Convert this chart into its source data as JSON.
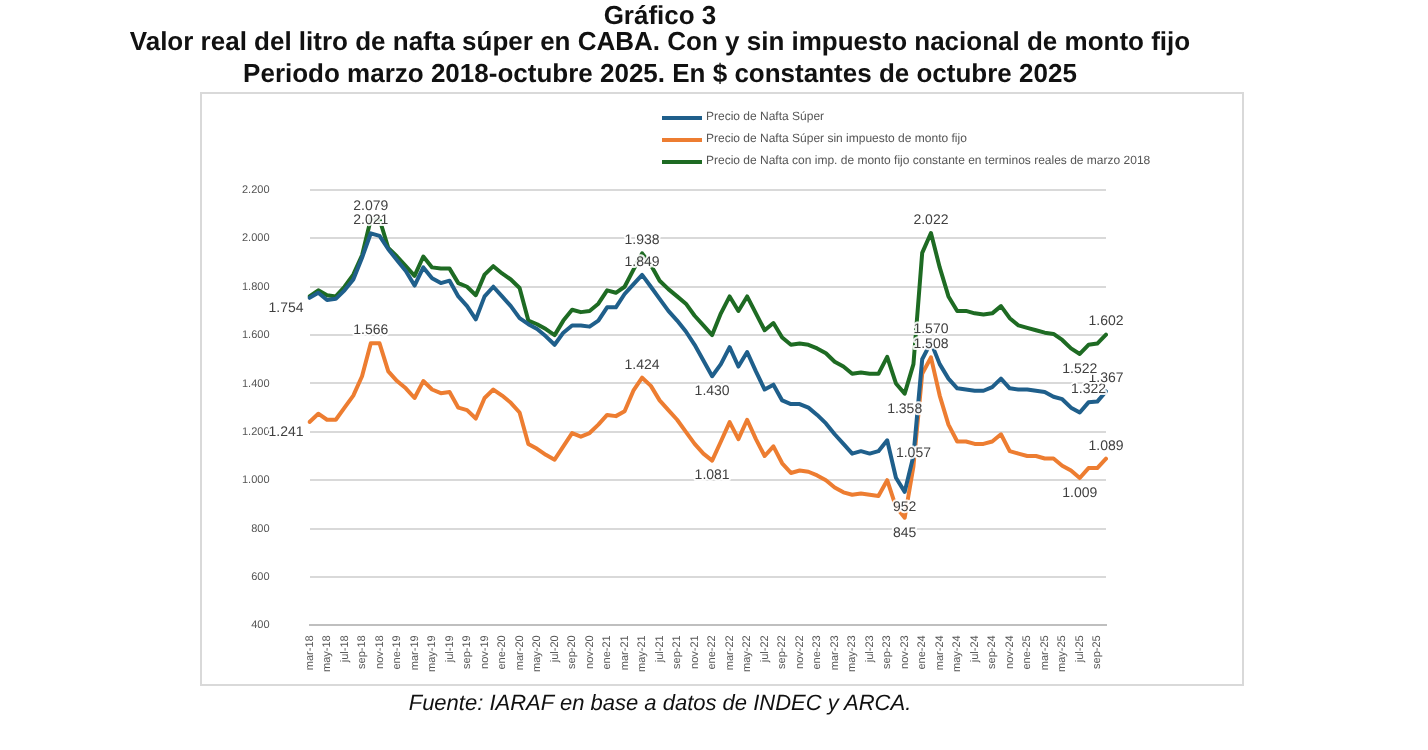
{
  "chart_data": {
    "type": "line",
    "title": "Valor real del litro de nafta súper en CABA. Con y sin impuesto nacional de monto fijo",
    "subtitle": "Periodo marzo 2018-octubre 2025.  En $ constantes de octubre 2025",
    "annotations": [
      "Gráfico 3",
      "Fuente:  IARAF en base a datos de INDEC  y ARCA."
    ],
    "categories": [
      "mar-18",
      null,
      "may-18",
      null,
      "jul-18",
      null,
      "sep-18",
      null,
      "nov-18",
      null,
      "ene-19",
      null,
      "mar-19",
      null,
      "may-19",
      null,
      "jul-19",
      null,
      "sep-19",
      null,
      "nov-19",
      null,
      "ene-20",
      null,
      "mar-20",
      null,
      "may-20",
      null,
      "jul-20",
      null,
      "sep-20",
      null,
      "nov-20",
      null,
      "ene-21",
      null,
      "mar-21",
      null,
      "may-21",
      null,
      "jul-21",
      null,
      "sep-21",
      null,
      "nov-21",
      null,
      "ene-22",
      null,
      "mar-22",
      null,
      "may-22",
      null,
      "jul-22",
      null,
      "sep-22",
      null,
      "nov-22",
      null,
      "ene-23",
      null,
      "mar-23",
      null,
      "may-23",
      null,
      "jul-23",
      null,
      "sep-23",
      null,
      "nov-23",
      null,
      "ene-24",
      null,
      "mar-24",
      null,
      "may-24",
      null,
      "jul-24",
      null,
      "sep-24",
      null,
      "nov-24",
      null,
      "ene-25",
      null,
      "mar-25",
      null,
      "may-25",
      null,
      "jul-25",
      null,
      "sep-25",
      null
    ],
    "series": [
      {
        "name": "Precio de Nafta Súper",
        "color": "#1f5f8b",
        "values": [
          1754,
          1775,
          1745,
          1750,
          1785,
          1830,
          1920,
          2021,
          2010,
          1955,
          1910,
          1865,
          1805,
          1880,
          1835,
          1815,
          1825,
          1760,
          1720,
          1665,
          1760,
          1800,
          1760,
          1720,
          1670,
          1645,
          1625,
          1595,
          1560,
          1610,
          1640,
          1640,
          1635,
          1660,
          1715,
          1715,
          1770,
          1810,
          1849,
          1800,
          1750,
          1700,
          1660,
          1615,
          1560,
          1495,
          1430,
          1480,
          1550,
          1470,
          1530,
          1450,
          1375,
          1395,
          1330,
          1315,
          1315,
          1300,
          1270,
          1235,
          1190,
          1150,
          1110,
          1120,
          1110,
          1120,
          1165,
          1010,
          952,
          1100,
          1500,
          1570,
          1480,
          1420,
          1380,
          1375,
          1370,
          1370,
          1385,
          1420,
          1380,
          1375,
          1375,
          1370,
          1365,
          1345,
          1335,
          1300,
          1280,
          1322,
          1325,
          1367
        ],
        "value_labels": [
          "1.754",
          null,
          null,
          null,
          null,
          null,
          null,
          "2.021",
          null,
          null,
          null,
          null,
          null,
          null,
          null,
          null,
          null,
          null,
          null,
          null,
          null,
          null,
          null,
          null,
          null,
          null,
          null,
          null,
          null,
          null,
          null,
          null,
          null,
          null,
          null,
          null,
          null,
          null,
          "1.849",
          null,
          null,
          null,
          null,
          null,
          null,
          null,
          "1.430",
          null,
          null,
          null,
          null,
          null,
          null,
          null,
          null,
          null,
          null,
          null,
          null,
          null,
          null,
          null,
          null,
          null,
          null,
          null,
          null,
          null,
          "952",
          null,
          null,
          "1.570",
          null,
          null,
          null,
          null,
          null,
          null,
          null,
          null,
          null,
          null,
          null,
          null,
          null,
          null,
          null,
          null,
          null,
          "1.322",
          null,
          "1.367"
        ]
      },
      {
        "name": "Precio de Nafta Súper sin impuesto de monto fijo",
        "color": "#ed7d31",
        "values": [
          1241,
          1275,
          1250,
          1250,
          1300,
          1350,
          1430,
          1566,
          1566,
          1450,
          1410,
          1380,
          1340,
          1410,
          1375,
          1360,
          1365,
          1300,
          1290,
          1255,
          1340,
          1375,
          1350,
          1320,
          1280,
          1150,
          1130,
          1105,
          1085,
          1140,
          1195,
          1180,
          1195,
          1230,
          1270,
          1265,
          1285,
          1370,
          1424,
          1390,
          1330,
          1290,
          1250,
          1200,
          1150,
          1110,
          1081,
          1160,
          1240,
          1170,
          1250,
          1170,
          1100,
          1140,
          1070,
          1030,
          1040,
          1035,
          1020,
          1000,
          970,
          950,
          940,
          945,
          940,
          935,
          1000,
          890,
          845,
          1057,
          1440,
          1508,
          1350,
          1230,
          1160,
          1160,
          1150,
          1150,
          1160,
          1190,
          1120,
          1110,
          1100,
          1100,
          1090,
          1090,
          1060,
          1040,
          1009,
          1050,
          1050,
          1089
        ],
        "value_labels": [
          "1.241",
          null,
          null,
          null,
          null,
          null,
          null,
          "1.566",
          null,
          null,
          null,
          null,
          null,
          null,
          null,
          null,
          null,
          null,
          null,
          null,
          null,
          null,
          null,
          null,
          null,
          null,
          null,
          null,
          null,
          null,
          null,
          null,
          null,
          null,
          null,
          null,
          null,
          null,
          "1.424",
          null,
          null,
          null,
          null,
          null,
          null,
          null,
          "1.081",
          null,
          null,
          null,
          null,
          null,
          null,
          null,
          null,
          null,
          null,
          null,
          null,
          null,
          null,
          null,
          null,
          null,
          null,
          null,
          null,
          null,
          "845",
          "1.057",
          null,
          "1.508",
          null,
          null,
          null,
          null,
          null,
          null,
          null,
          null,
          null,
          null,
          null,
          null,
          null,
          null,
          null,
          null,
          "1.009",
          null,
          null,
          "1.089"
        ]
      },
      {
        "name": "Precio de Nafta con imp. de monto fijo constante en terminos reales de marzo 2018",
        "color": "#1e6b23",
        "values": [
          1760,
          1785,
          1765,
          1760,
          1800,
          1850,
          1930,
          2079,
          2079,
          1960,
          1925,
          1885,
          1845,
          1925,
          1880,
          1875,
          1875,
          1815,
          1800,
          1765,
          1850,
          1885,
          1855,
          1830,
          1795,
          1660,
          1645,
          1625,
          1600,
          1660,
          1705,
          1695,
          1700,
          1730,
          1785,
          1775,
          1800,
          1870,
          1938,
          1890,
          1825,
          1790,
          1760,
          1730,
          1680,
          1640,
          1600,
          1690,
          1760,
          1700,
          1760,
          1690,
          1620,
          1650,
          1590,
          1560,
          1565,
          1560,
          1545,
          1525,
          1490,
          1470,
          1440,
          1445,
          1440,
          1440,
          1510,
          1400,
          1358,
          1480,
          1940,
          2022,
          1880,
          1760,
          1700,
          1700,
          1690,
          1685,
          1690,
          1720,
          1670,
          1640,
          1630,
          1620,
          1610,
          1605,
          1580,
          1545,
          1522,
          1560,
          1565,
          1602
        ],
        "value_labels": [
          null,
          null,
          null,
          null,
          null,
          null,
          null,
          "2.079",
          null,
          null,
          null,
          null,
          null,
          null,
          null,
          null,
          null,
          null,
          null,
          null,
          null,
          null,
          null,
          null,
          null,
          null,
          null,
          null,
          null,
          null,
          null,
          null,
          null,
          null,
          null,
          null,
          null,
          null,
          "1.938",
          null,
          null,
          null,
          null,
          null,
          null,
          null,
          null,
          null,
          null,
          null,
          null,
          null,
          null,
          null,
          null,
          null,
          null,
          null,
          null,
          null,
          null,
          null,
          null,
          null,
          null,
          null,
          null,
          null,
          "1.358",
          null,
          null,
          "2.022",
          null,
          null,
          null,
          null,
          null,
          null,
          null,
          null,
          null,
          null,
          null,
          null,
          null,
          null,
          null,
          null,
          "1.522",
          null,
          null,
          "1.602"
        ]
      }
    ],
    "ylim": [
      400,
      2200
    ],
    "yticks": [
      {
        "value": 400,
        "label": "400"
      },
      {
        "value": 600,
        "label": "600"
      },
      {
        "value": 800,
        "label": "800"
      },
      {
        "value": 1000,
        "label": "1.000"
      },
      {
        "value": 1200,
        "label": "1.200"
      },
      {
        "value": 1400,
        "label": "1.400"
      },
      {
        "value": 1600,
        "label": "1.600"
      },
      {
        "value": 1800,
        "label": "1.800"
      },
      {
        "value": 2000,
        "label": "2.000"
      },
      {
        "value": 2200,
        "label": "2.200"
      }
    ],
    "grid": "y",
    "legend": "top",
    "marker": "none",
    "line_style": "solid"
  }
}
